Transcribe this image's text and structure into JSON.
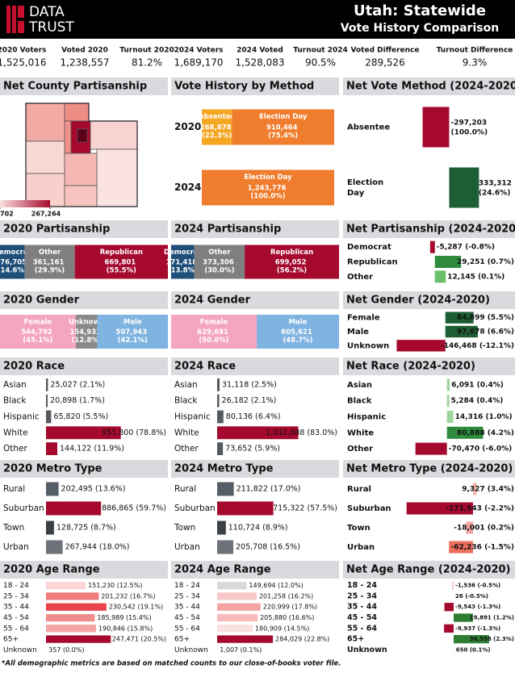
{
  "header": {
    "logo": [
      "DATA",
      "TRUST"
    ],
    "title": "Utah: Statewide",
    "subtitle": "Vote History Comparison",
    "stats": [
      {
        "label": "2020 Voters",
        "value": "1,525,016"
      },
      {
        "label": "Voted 2020",
        "value": "1,238,557"
      },
      {
        "label": "Turnout 2020",
        "value": "81.2%"
      },
      {
        "label": "2024 Voters",
        "value": "1,689,170"
      },
      {
        "label": "2024 Voted",
        "value": "1,528,083"
      },
      {
        "label": "Turnout 2024",
        "value": "90.5%"
      },
      {
        "label": "Voted Difference",
        "value": "289,526"
      },
      {
        "label": "Turnout Difference",
        "value": "9.3%"
      }
    ]
  },
  "chart_data": [
    {
      "type": "map",
      "title": "Net County Partisanship",
      "clim": [
        702,
        267264
      ],
      "cticks": [
        702,
        {
          "value": 267264,
          "label": "267,264"
        }
      ]
    },
    {
      "type": "stacked-bar",
      "title": "Vote History by Method",
      "categories": [
        "2020",
        "2024"
      ],
      "series": [
        {
          "name": "Absentee",
          "color": "#f5a623",
          "values": [
            268878,
            null
          ],
          "value_labels": [
            "268,878 (22.3%)",
            null
          ]
        },
        {
          "name": "Election Day",
          "color": "#ef7d2d",
          "values": [
            910464,
            1243776
          ],
          "value_labels": [
            "910,464 (75.4%)",
            "1,243,776 (100.0%)"
          ]
        }
      ]
    },
    {
      "type": "diverging-bar",
      "title": "Net Vote Method (2024-2020)",
      "categories": [
        "Absentee",
        "Election Day"
      ],
      "values": [
        -297203,
        333312
      ],
      "value_labels": [
        "-297,203 (100.0%)",
        "333,312 (24.6%)"
      ],
      "colors": [
        "#a50a2e",
        "#1e5e34"
      ],
      "xlim": [
        -600000,
        700000
      ]
    },
    {
      "type": "stacked-bar",
      "title": "2020 Partisanship",
      "series": [
        {
          "name": "Democrat",
          "color": "#1f4e79",
          "values": [
            176705
          ],
          "value_labels": [
            "176,705 (14.6%)"
          ]
        },
        {
          "name": "Other",
          "color": "#7f7f7f",
          "values": [
            361161
          ],
          "value_labels": [
            "361,161 (29.9%)"
          ]
        },
        {
          "name": "Republican",
          "color": "#a50a2e",
          "values": [
            669801
          ],
          "value_labels": [
            "669,801 (55.5%)"
          ]
        }
      ]
    },
    {
      "type": "stacked-bar",
      "title": "2024 Partisanship",
      "series": [
        {
          "name": "Democrat",
          "color": "#1f4e79",
          "values": [
            171418
          ],
          "value_labels": [
            "171,418 (13.8%)"
          ]
        },
        {
          "name": "Other",
          "color": "#7f7f7f",
          "values": [
            373306
          ],
          "value_labels": [
            "373,306 (30.0%)"
          ]
        },
        {
          "name": "Republican",
          "color": "#a50a2e",
          "values": [
            699052
          ],
          "value_labels": [
            "699,052 (56.2%)"
          ]
        }
      ]
    },
    {
      "type": "diverging-bar",
      "title": "Net Partisanship (2024-2020)",
      "categories": [
        "Democrat",
        "Republican",
        "Other"
      ],
      "values": [
        -5287,
        29251,
        12145
      ],
      "value_labels": [
        "-5,287 (-0.8%)",
        "29,251 (0.7%)",
        "12,145 (0.1%)"
      ],
      "colors": [
        "#a50a2e",
        "#2e8b3e",
        "#6abf69"
      ],
      "xlim": [
        -44000,
        86000
      ]
    },
    {
      "type": "stacked-bar",
      "title": "2020 Gender",
      "series": [
        {
          "name": "Female",
          "color": "#f4a6c0",
          "values": [
            544792
          ],
          "value_labels": [
            "544,792 (45.1%)"
          ]
        },
        {
          "name": "Unknown",
          "color": "#8a8a8a",
          "values": [
            154932
          ],
          "value_labels": [
            "154,932 (12.8%)"
          ]
        },
        {
          "name": "Male",
          "color": "#7fb3e0",
          "values": [
            507943
          ],
          "value_labels": [
            "507,943 (42.1%)"
          ]
        }
      ]
    },
    {
      "type": "stacked-bar",
      "title": "2024 Gender",
      "series": [
        {
          "name": "Female",
          "color": "#f4a6c0",
          "values": [
            629691
          ],
          "value_labels": [
            "629,691 (50.6%)"
          ]
        },
        {
          "name": "Male",
          "color": "#7fb3e0",
          "values": [
            605621
          ],
          "value_labels": [
            "605,621 (48.7%)"
          ]
        }
      ]
    },
    {
      "type": "diverging-bar",
      "title": "Net Gender (2024-2020)",
      "categories": [
        "Female",
        "Male",
        "Unknown"
      ],
      "values": [
        84899,
        97678,
        -146468
      ],
      "value_labels": [
        "84,899 (5.5%)",
        "97,678 (6.6%)",
        "-146,468 (-12.1%)"
      ],
      "colors": [
        "#1e5e34",
        "#1e5e34",
        "#a50a2e"
      ],
      "xlim": [
        -150000,
        200000
      ]
    },
    {
      "type": "bar",
      "title": "2020 Race",
      "categories": [
        "Asian",
        "Black",
        "Hispanic",
        "White",
        "Other"
      ],
      "values": [
        25027,
        20898,
        65820,
        951800,
        144122
      ],
      "value_labels": [
        "25,027 (2.1%)",
        "20,898 (1.7%)",
        "65,820 (5.5%)",
        "951,800 (78.8%)",
        "144,122 (11.9%)"
      ],
      "colors": [
        "#555a60",
        "#555a60",
        "#555a60",
        "#a50a2e",
        "#a50a2e"
      ],
      "xlim": [
        0,
        1500000
      ]
    },
    {
      "type": "bar",
      "title": "2024 Race",
      "categories": [
        "Asian",
        "Black",
        "Hispanic",
        "White",
        "Other"
      ],
      "values": [
        31118,
        26182,
        80136,
        1032688,
        73652
      ],
      "value_labels": [
        "31,118 (2.5%)",
        "26,182 (2.1%)",
        "80,136 (6.4%)",
        "1,032,688 (83.0%)",
        "73,652 (5.9%)"
      ],
      "colors": [
        "#555a60",
        "#555a60",
        "#555a60",
        "#a50a2e",
        "#555a60"
      ],
      "xlim": [
        0,
        1500000
      ]
    },
    {
      "type": "diverging-bar",
      "title": "Net Race (2024-2020)",
      "categories": [
        "Asian",
        "Black",
        "Hispanic",
        "White",
        "Other"
      ],
      "values": [
        6091,
        5284,
        14316,
        80888,
        -70470
      ],
      "value_labels": [
        "6,091 (0.4%)",
        "5,284 (0.4%)",
        "14,316 (1.0%)",
        "80,888 (4.2%)",
        "-70,470 (-6.0%)"
      ],
      "colors": [
        "#9fd49f",
        "#9fd49f",
        "#9fd49f",
        "#2e8b3e",
        "#a50a2e"
      ],
      "xlim": [
        -115000,
        145000
      ]
    },
    {
      "type": "bar",
      "title": "2020 Metro Type",
      "categories": [
        "Rural",
        "Suburban",
        "Town",
        "Urban"
      ],
      "values": [
        202495,
        886865,
        128725,
        267944
      ],
      "value_labels": [
        "202,495 (13.6%)",
        "886,865 (59.7%)",
        "128,725 (8.7%)",
        "267,944 (18.0%)"
      ],
      "colors": [
        "#555e66",
        "#a50a2e",
        "#3b4048",
        "#6d7278"
      ],
      "xlim": [
        0,
        1900000
      ]
    },
    {
      "type": "bar",
      "title": "2024 Metro Type",
      "categories": [
        "Rural",
        "Suburban",
        "Town",
        "Urban"
      ],
      "values": [
        211822,
        715322,
        110724,
        205708
      ],
      "value_labels": [
        "211,822 (17.0%)",
        "715,322 (57.5%)",
        "110,724 (8.9%)",
        "205,708 (16.5%)"
      ],
      "colors": [
        "#555e66",
        "#a50a2e",
        "#3b4048",
        "#6d7278"
      ],
      "xlim": [
        0,
        1500000
      ]
    },
    {
      "type": "diverging-bar",
      "title": "Net Metro Type (2024-2020)",
      "categories": [
        "Rural",
        "Suburban",
        "Town",
        "Urban"
      ],
      "values": [
        9327,
        -171543,
        -18001,
        -62236
      ],
      "value_labels": [
        "9,327 (3.4%)",
        "-171,543 (-2.2%)",
        "-18,001 (0.2%)",
        "-62,236 (-1.5%)"
      ],
      "colors": [
        "#f7b6a8",
        "#a50a2e",
        "#f4a3a3",
        "#ef6f5e"
      ],
      "xlim": [
        -200000,
        100000
      ]
    },
    {
      "type": "bar",
      "title": "2020 Age Range",
      "categories": [
        "18 - 24",
        "25 - 34",
        "35 - 44",
        "45 - 54",
        "55 - 64",
        "65+",
        "Unknown"
      ],
      "values": [
        151230,
        201232,
        230542,
        185989,
        190846,
        247471,
        357
      ],
      "value_labels": [
        "151,230 (12.5%)",
        "201,232 (16.7%)",
        "230,542 (19.1%)",
        "185,989 (15.4%)",
        "190,846 (15.8%)",
        "247,471 (20.5%)",
        "357 (0.0%)"
      ],
      "colors": [
        "#fbd5d5",
        "#f07b7b",
        "#e8424a",
        "#f08c8c",
        "#f6a5a5",
        "#a50a2e",
        "#eeeeee"
      ],
      "xlim": [
        0,
        450000
      ]
    },
    {
      "type": "bar",
      "title": "2024 Age Range",
      "categories": [
        "18 - 24",
        "25 - 34",
        "35 - 44",
        "45 - 54",
        "55 - 64",
        "65+",
        "Unknown"
      ],
      "values": [
        149694,
        201258,
        220999,
        205880,
        180909,
        284029,
        1007
      ],
      "value_labels": [
        "149,694 (12.0%)",
        "201,258 (16.2%)",
        "220,999 (17.8%)",
        "205,880 (16.6%)",
        "180,909 (14.5%)",
        "284,029 (22.8%)",
        "1,007 (0.1%)"
      ],
      "colors": [
        "#d9d9d9",
        "#f7c7c7",
        "#f4a3a3",
        "#f7baba",
        "#fbe0e0",
        "#a50a2e",
        "#eeeeee"
      ],
      "xlim": [
        0,
        600000
      ]
    },
    {
      "type": "diverging-bar",
      "title": "Net Age Range (2024-2020)",
      "categories": [
        "18 - 24",
        "25 - 34",
        "35 - 44",
        "45 - 54",
        "55 - 64",
        "65+",
        "Unknown"
      ],
      "values": [
        -1536,
        26,
        -9543,
        19891,
        -9937,
        36558,
        650
      ],
      "value_labels": [
        "-1,536 (-0.5%)",
        "26 (-0.5%)",
        "-9,543 (-1.3%)",
        "19,891 (1.2%)",
        "-9,937 (-1.3%)",
        "36,558 (2.3%)",
        "650 (0.1%)"
      ],
      "colors": [
        "#f8c9c9",
        "#eeeeee",
        "#a50a2e",
        "#2e7d32",
        "#a50a2e",
        "#2e7d32",
        "#eeeeee"
      ],
      "xlim": [
        -60000,
        60000
      ]
    }
  ],
  "footnote": "*All demographic metrics are based on matched counts to our close-of-books voter file."
}
